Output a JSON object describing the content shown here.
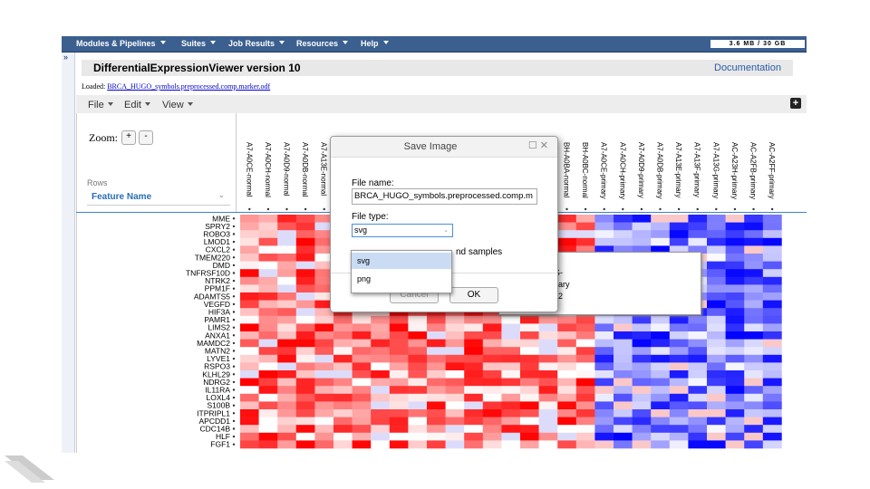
{
  "nav": {
    "items": [
      "Modules & Pipelines",
      "Suites",
      "Job Results",
      "Resources",
      "Help"
    ],
    "memory": "3.6 MB / 30 GB"
  },
  "header": {
    "title": "DifferentialExpressionViewer version 10",
    "documentation": "Documentation"
  },
  "loaded": {
    "label": "Loaded:",
    "file": "BRCA_HUGO_symbols.preprocessed.comp.marker.odf"
  },
  "menu": [
    "File",
    "Edit",
    "View"
  ],
  "zoom": {
    "label": "Zoom:",
    "plus": "+",
    "minus": "-"
  },
  "rows_panel": {
    "label": "Rows",
    "select": "Feature Name"
  },
  "columns_left": [
    "A7-A0CE-normal",
    "A7-A0CH-normal",
    "A7-A0D9-normal",
    "A7-A0DB-normal",
    "A7-A13E-normal"
  ],
  "columns_right": [
    "BH-A0BA-normal",
    "BH-A0BC-normal",
    "A7-A0CE-primary",
    "A7-A0CH-primary",
    "A7-A0D9-primary",
    "A7-A0DB-primary",
    "A7-A13E-primary",
    "A7-A13F-primary",
    "A7-A13G-primary",
    "AC-A23H-primary",
    "AC-A2FB-primary",
    "AC-A2FF-primary"
  ],
  "rows": [
    "MME",
    "SPRY2",
    "ROBO3",
    "LMOD1",
    "CXCL2",
    "TMEM220",
    "DMD",
    "TNFRSF10D",
    "NTRK2",
    "PPM1F",
    "ADAMTS5",
    "VEGFD",
    "HIF3A",
    "PAMR1",
    "LIMS2",
    "ANXA1",
    "MAMDC2",
    "MATN2",
    "LYVE1",
    "RSPO3",
    "KLHL29",
    "NDRG2",
    "IL11RA",
    "LOXL4",
    "S100B",
    "ITPRIPL1",
    "APCDD1",
    "CDC14B",
    "HLF",
    "FGF1"
  ],
  "tooltip": [
    "G-",
    "nary",
    "L2"
  ],
  "dialog": {
    "title": "Save Image",
    "file_name_label": "File name:",
    "file_name": "BRCA_HUGO_symbols.preprocessed.comp.m",
    "file_type_label": "File type:",
    "file_type": "svg",
    "options": [
      "svg",
      "png"
    ],
    "hidden_text": "nd samples",
    "cancel": "Cancel",
    "ok": "OK"
  }
}
